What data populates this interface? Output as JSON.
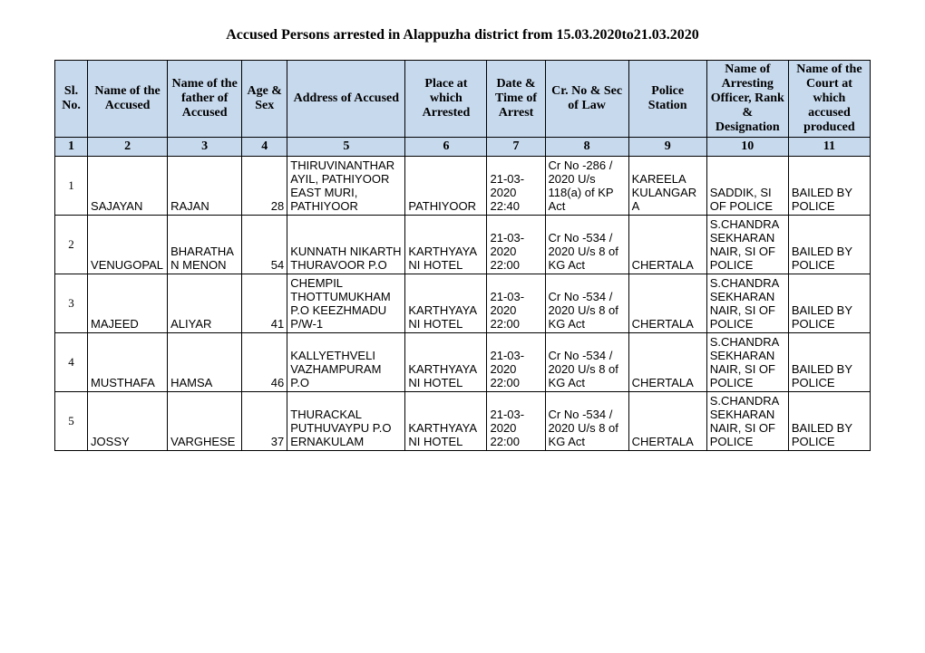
{
  "title": "Accused Persons arrested in   Alappuzha  district from  15.03.2020to21.03.2020",
  "header_bg": "#c7d9ed",
  "border_color": "#000000",
  "columns": [
    "Sl. No.",
    "Name of the Accused",
    "Name of the father of Accused",
    "Age & Sex",
    "Address of Accused",
    "Place at which Arrested",
    "Date & Time of Arrest",
    "Cr. No & Sec of Law",
    "Police Station",
    "Name of Arresting Officer, Rank & Designation",
    "Name of the Court at which accused produced"
  ],
  "colnums": [
    "1",
    "2",
    "3",
    "4",
    "5",
    "6",
    "7",
    "8",
    "9",
    "10",
    "11"
  ],
  "rows": [
    {
      "sl": "1",
      "name": "SAJAYAN",
      "father": "RAJAN",
      "age": "28",
      "address": "THIRUVINANTHARAYIL, PATHIYOOR EAST MURI, PATHIYOOR",
      "place": "PATHIYOOR",
      "datetime": "21-03-2020 22:40",
      "crno": " Cr No -286 / 2020  U/s 118(a) of KP Act",
      "station": "KAREELA KULANGARA",
      "officer": "SADDIK, SI OF POLICE",
      "court": "BAILED BY POLICE"
    },
    {
      "sl": "2",
      "name": "VENUGOPAL",
      "father": "BHARATHAN MENON",
      "age": "54",
      "address": "KUNNATH NIKARTH THURAVOOR P.O",
      "place": "KARTHYAYANI HOTEL",
      "datetime": "21-03-2020 22:00",
      "crno": " Cr No -534 / 2020  U/s 8 of KG Act",
      "station": "CHERTALA",
      "officer": "S.CHANDRASEKHARAN NAIR, SI OF POLICE",
      "court": "BAILED BY POLICE"
    },
    {
      "sl": "3",
      "name": "MAJEED",
      "father": "ALIYAR",
      "age": "41",
      "address": "CHEMPIL THOTTUMUKHAM P.O KEEZHMADU P/W-1",
      "place": "KARTHYAYANI HOTEL",
      "datetime": "21-03-2020 22:00",
      "crno": " Cr No -534 / 2020  U/s 8 of KG Act",
      "station": "CHERTALA",
      "officer": "S.CHANDRASEKHARAN NAIR, SI OF POLICE",
      "court": "BAILED BY POLICE"
    },
    {
      "sl": "4",
      "name": "MUSTHAFA",
      "father": "HAMSA",
      "age": "46",
      "address": "KALLYETHVELI VAZHAMPURAM P.O",
      "place": "KARTHYAYANI HOTEL",
      "datetime": "21-03-2020 22:00",
      "crno": " Cr No -534 / 2020  U/s 8 of KG Act",
      "station": "CHERTALA",
      "officer": "S.CHANDRASEKHARAN NAIR, SI OF POLICE",
      "court": "BAILED BY POLICE"
    },
    {
      "sl": "5",
      "name": "JOSSY",
      "father": "VARGHESE",
      "age": "37",
      "address": "THURACKAL PUTHUVAYPU P.O ERNAKULAM",
      "place": "KARTHYAYANI HOTEL",
      "datetime": "21-03-2020 22:00",
      "crno": " Cr No -534 / 2020  U/s 8 of KG Act",
      "station": "CHERTALA",
      "officer": "S.CHANDRASEKHARAN NAIR, SI OF POLICE",
      "court": "BAILED BY POLICE"
    }
  ]
}
